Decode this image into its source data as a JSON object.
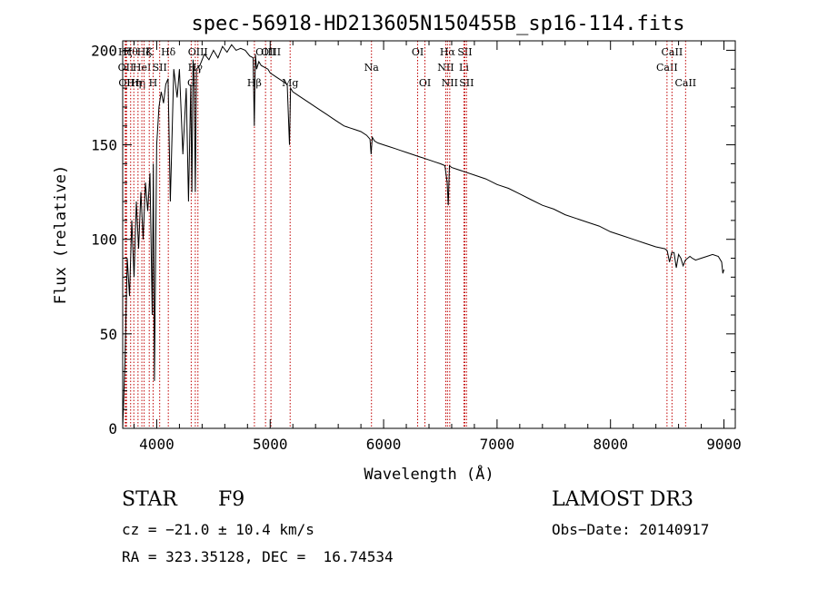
{
  "chart_data": {
    "type": "line",
    "title": "spec-56918-HD213605N150455B_sp16-114.fits",
    "xlabel": "Wavelength (Å)",
    "ylabel": "Flux (relative)",
    "xlim": [
      3700,
      9100
    ],
    "ylim": [
      0,
      205
    ],
    "xticks": [
      4000,
      5000,
      6000,
      7000,
      8000,
      9000
    ],
    "yticks": [
      0,
      50,
      100,
      150,
      200
    ],
    "grid": false,
    "series": [
      {
        "name": "flux",
        "x": [
          3700,
          3720,
          3740,
          3760,
          3780,
          3800,
          3820,
          3840,
          3860,
          3880,
          3900,
          3920,
          3940,
          3960,
          3970,
          3980,
          4000,
          4020,
          4040,
          4060,
          4080,
          4100,
          4120,
          4150,
          4180,
          4200,
          4230,
          4260,
          4280,
          4300,
          4310,
          4320,
          4330,
          4340,
          4350,
          4380,
          4420,
          4460,
          4500,
          4540,
          4580,
          4620,
          4660,
          4700,
          4740,
          4780,
          4820,
          4850,
          4860,
          4870,
          4880,
          4900,
          4920,
          4950,
          4980,
          5000,
          5050,
          5100,
          5150,
          5170,
          5180,
          5200,
          5250,
          5300,
          5350,
          5400,
          5450,
          5500,
          5550,
          5600,
          5650,
          5700,
          5750,
          5800,
          5850,
          5880,
          5890,
          5900,
          5920,
          5950,
          6000,
          6050,
          6100,
          6150,
          6200,
          6250,
          6300,
          6350,
          6400,
          6450,
          6500,
          6540,
          6560,
          6570,
          6580,
          6600,
          6650,
          6700,
          6800,
          6900,
          7000,
          7100,
          7200,
          7300,
          7400,
          7500,
          7600,
          7700,
          7800,
          7900,
          8000,
          8100,
          8200,
          8300,
          8400,
          8480,
          8500,
          8520,
          8540,
          8560,
          8580,
          8600,
          8620,
          8640,
          8660,
          8680,
          8700,
          8720,
          8750,
          8800,
          8850,
          8900,
          8950,
          8980,
          8990,
          9000
        ],
        "y": [
          0,
          35,
          90,
          70,
          110,
          80,
          120,
          95,
          125,
          100,
          130,
          115,
          135,
          60,
          140,
          25,
          150,
          170,
          178,
          172,
          182,
          185,
          120,
          190,
          175,
          190,
          145,
          180,
          120,
          182,
          125,
          195,
          185,
          125,
          190,
          192,
          198,
          195,
          200,
          196,
          202,
          199,
          203,
          200,
          201,
          200,
          197,
          196,
          160,
          198,
          190,
          194,
          192,
          191,
          190,
          188,
          186,
          184,
          182,
          150,
          180,
          178,
          176,
          174,
          172,
          170,
          168,
          166,
          164,
          162,
          160,
          159,
          158,
          157,
          155,
          153,
          145,
          154,
          152,
          151,
          150,
          149,
          148,
          147,
          146,
          145,
          144,
          143,
          142,
          141,
          140,
          139,
          130,
          118,
          139,
          138,
          137,
          136,
          134,
          132,
          129,
          127,
          124,
          121,
          118,
          116,
          113,
          111,
          109,
          107,
          104,
          102,
          100,
          98,
          96,
          95,
          94,
          88,
          93,
          93,
          85,
          92,
          90,
          86,
          89,
          90,
          91,
          90,
          89,
          90,
          91,
          92,
          91,
          88,
          82,
          84
        ]
      }
    ],
    "lines": [
      {
        "w": 3722,
        "label": "Hζ",
        "row": 1
      },
      {
        "w": 3728,
        "label": "OII",
        "row": 2
      },
      {
        "w": 3734,
        "label": "OII",
        "row": 3
      },
      {
        "w": 3770,
        "label": "Hθ",
        "row": 1
      },
      {
        "w": 3798,
        "label": "Hη",
        "row": 3
      },
      {
        "w": 3835,
        "label": "Hη",
        "row": 3
      },
      {
        "w": 3869,
        "label": "HeI",
        "row": 2
      },
      {
        "w": 3889,
        "label": "Hζ",
        "row": 1
      },
      {
        "w": 3934,
        "label": "K",
        "row": 1
      },
      {
        "w": 3968,
        "label": "H",
        "row": 3
      },
      {
        "w": 4026,
        "label": "SII",
        "row": 2
      },
      {
        "w": 4102,
        "label": "Hδ",
        "row": 1
      },
      {
        "w": 4304,
        "label": "G",
        "row": 3
      },
      {
        "w": 4340,
        "label": "Hγ",
        "row": 2
      },
      {
        "w": 4363,
        "label": "OIII",
        "row": 1
      },
      {
        "w": 4861,
        "label": "Hβ",
        "row": 3
      },
      {
        "w": 4959,
        "label": "OIII",
        "row": 1
      },
      {
        "w": 5007,
        "label": "OIII",
        "row": 1
      },
      {
        "w": 5176,
        "label": "Mg",
        "row": 3
      },
      {
        "w": 5893,
        "label": "Na",
        "row": 2
      },
      {
        "w": 6300,
        "label": "OI",
        "row": 1
      },
      {
        "w": 6364,
        "label": "OI",
        "row": 3
      },
      {
        "w": 6548,
        "label": "NII",
        "row": 2
      },
      {
        "w": 6563,
        "label": "Hα",
        "row": 1
      },
      {
        "w": 6583,
        "label": "NII",
        "row": 3
      },
      {
        "w": 6708,
        "label": "Li",
        "row": 2
      },
      {
        "w": 6716,
        "label": "SII",
        "row": 1
      },
      {
        "w": 6731,
        "label": "SII",
        "row": 3
      },
      {
        "w": 8498,
        "label": "CaII",
        "row": 2
      },
      {
        "w": 8542,
        "label": "CaII",
        "row": 1
      },
      {
        "w": 8662,
        "label": "CaII",
        "row": 3
      }
    ]
  },
  "info": {
    "class_label": "STAR",
    "subclass": "F9",
    "survey": "LAMOST DR3",
    "cz": "cz = −21.0 ± 10.4 km/s",
    "obs_date": "Obs−Date: 20140917",
    "radec": "RA = 323.35128, DEC =  16.74534"
  }
}
